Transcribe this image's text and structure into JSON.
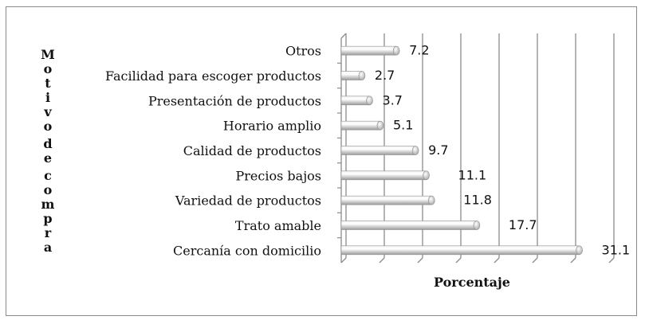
{
  "chart_data": {
    "type": "bar",
    "orientation": "horizontal",
    "style": "3d-cylinder",
    "categories": [
      "Otros",
      "Facilidad para escoger productos",
      "Presentación de productos",
      "Horario amplio",
      "Calidad de productos",
      "Precios bajos",
      "Variedad de productos",
      "Trato amable",
      "Cercanía con domicilio"
    ],
    "values": [
      7.2,
      2.7,
      3.7,
      5.1,
      9.7,
      11.1,
      11.8,
      17.7,
      31.1
    ],
    "data_labels": [
      "7.2",
      "2.7",
      "3.7",
      "5.1",
      "9.7",
      "11.1",
      "11.8",
      "17.7",
      "31.1"
    ],
    "xlabel": "Porcentaje",
    "ylabel": "Motivo de compra",
    "xlim": [
      0,
      35
    ],
    "grid": true,
    "x_tick_labels_shown": false,
    "bar_color": "#d0d0d0",
    "grid_color": "#8c8c8c"
  }
}
